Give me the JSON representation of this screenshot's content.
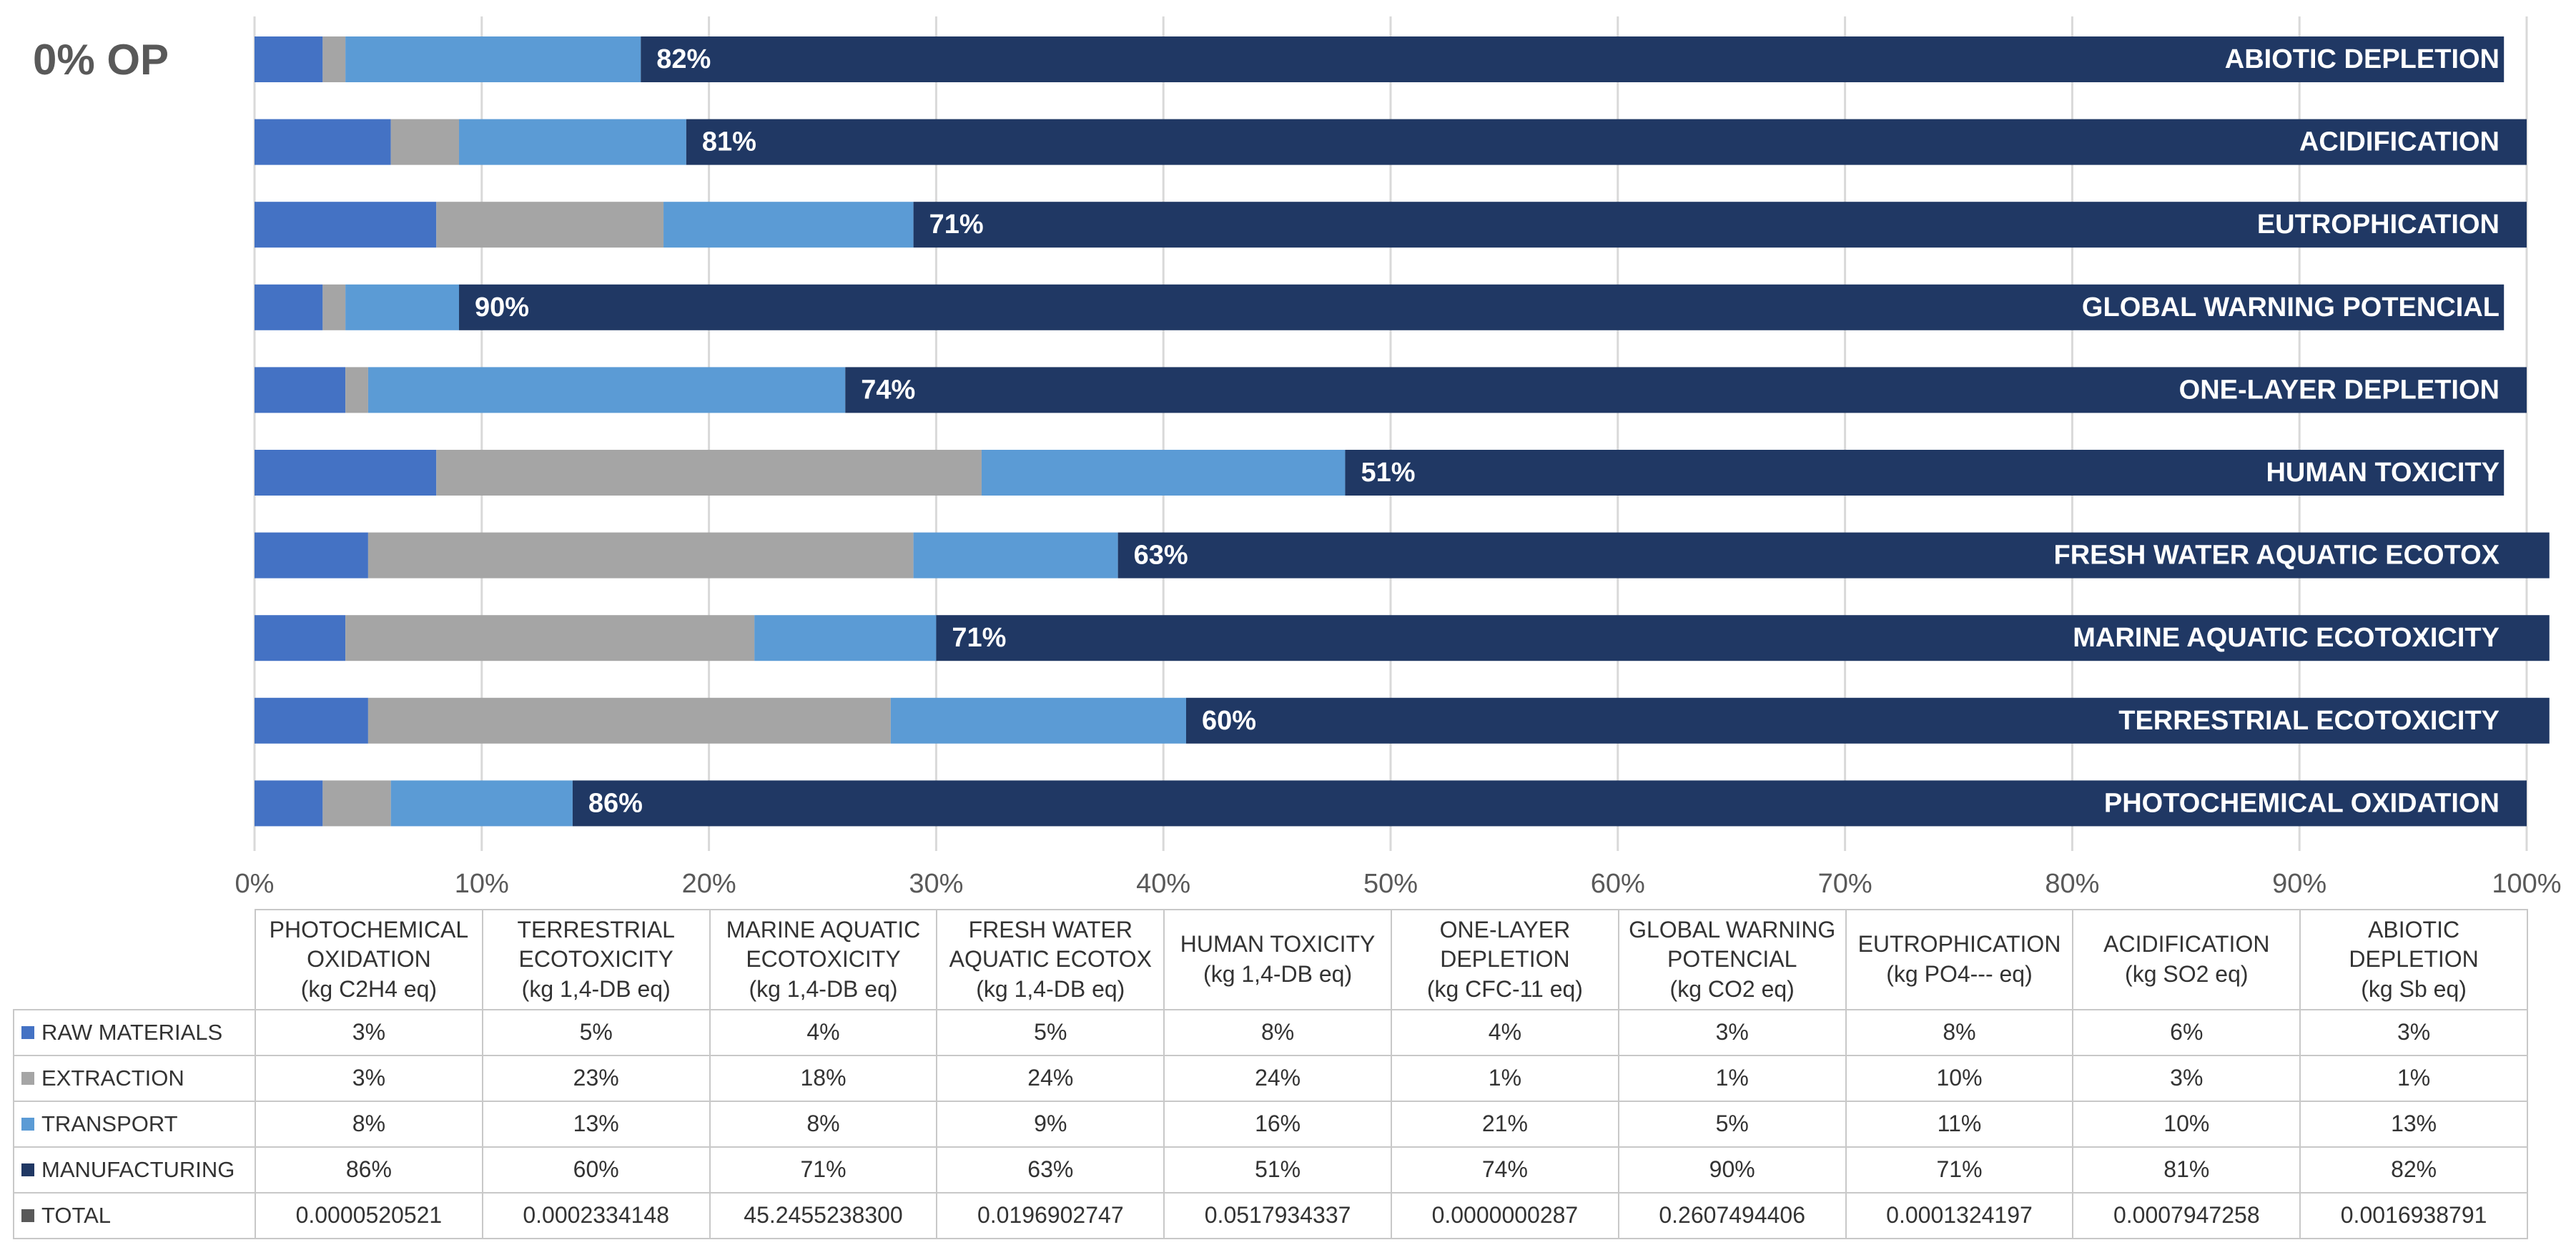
{
  "chart_data": {
    "type": "bar",
    "orientation": "horizontal",
    "stacked": true,
    "title": "0% OP",
    "categories": [
      "PHOTOCHEMICAL OXIDATION",
      "TERRESTRIAL ECOTOXICITY",
      "MARINE AQUATIC ECOTOXICITY",
      "FRESH WATER AQUATIC ECOTOX",
      "HUMAN TOXICITY",
      "ONE-LAYER DEPLETION",
      "GLOBAL WARNING POTENCIAL",
      "EUTROPHICATION",
      "ACIDIFICATION",
      "ABIOTIC DEPLETION"
    ],
    "units": [
      "(kg C2H4 eq)",
      "(kg 1,4-DB eq)",
      "(kg 1,4-DB eq)",
      "(kg 1,4-DB eq)",
      "(kg 1,4-DB eq)",
      "(kg CFC-11 eq)",
      "(kg CO2 eq)",
      "(kg PO4--- eq)",
      "(kg SO2 eq)",
      "(kg Sb eq)"
    ],
    "series": [
      {
        "name": "RAW MATERIALS",
        "color": "#4472c4",
        "values": [
          3,
          5,
          4,
          5,
          8,
          4,
          3,
          8,
          6,
          3
        ],
        "value_labels": [
          "3%",
          "5%",
          "4%",
          "5%",
          "8%",
          "4%",
          "3%",
          "8%",
          "6%",
          "3%"
        ]
      },
      {
        "name": "EXTRACTION",
        "color": "#a5a5a5",
        "values": [
          3,
          23,
          18,
          24,
          24,
          1,
          1,
          10,
          3,
          1
        ],
        "value_labels": [
          "3%",
          "23%",
          "18%",
          "24%",
          "24%",
          "1%",
          "1%",
          "10%",
          "3%",
          "1%"
        ]
      },
      {
        "name": "TRANSPORT",
        "color": "#5b9bd5",
        "values": [
          8,
          13,
          8,
          9,
          16,
          21,
          5,
          11,
          10,
          13
        ],
        "value_labels": [
          "8%",
          "13%",
          "8%",
          "9%",
          "16%",
          "21%",
          "5%",
          "11%",
          "10%",
          "13%"
        ]
      },
      {
        "name": "MANUFACTURING",
        "color": "#203864",
        "values": [
          86,
          60,
          71,
          63,
          51,
          74,
          90,
          71,
          81,
          82
        ],
        "value_labels": [
          "86%",
          "60%",
          "71%",
          "63%",
          "51%",
          "74%",
          "90%",
          "71%",
          "81%",
          "82%"
        ]
      }
    ],
    "totals": {
      "name": "TOTAL",
      "color": "#595959",
      "values": [
        5.20521e-05,
        0.0002334148,
        45.24552383,
        0.0196902747,
        0.0517934337,
        2.87e-08,
        0.2607494406,
        0.0001324197,
        0.0007947258,
        0.0016938791
      ],
      "value_labels": [
        "0.0000520521",
        "0.0002334148",
        "45.2455238300",
        "0.0196902747",
        "0.0517934337",
        "0.0000000287",
        "0.2607494406",
        "0.0001324197",
        "0.0007947258",
        "0.0016938791"
      ]
    },
    "xlim": [
      0,
      100
    ],
    "xticks": [
      {
        "value": 0,
        "label": "0%"
      },
      {
        "value": 10,
        "label": "10%"
      },
      {
        "value": 20,
        "label": "20%"
      },
      {
        "value": 30,
        "label": "30%"
      },
      {
        "value": 40,
        "label": "40%"
      },
      {
        "value": 50,
        "label": "50%"
      },
      {
        "value": 60,
        "label": "60%"
      },
      {
        "value": 70,
        "label": "70%"
      },
      {
        "value": 80,
        "label": "80%"
      },
      {
        "value": 90,
        "label": "90%"
      },
      {
        "value": 100,
        "label": "100%"
      }
    ],
    "grid": true
  }
}
